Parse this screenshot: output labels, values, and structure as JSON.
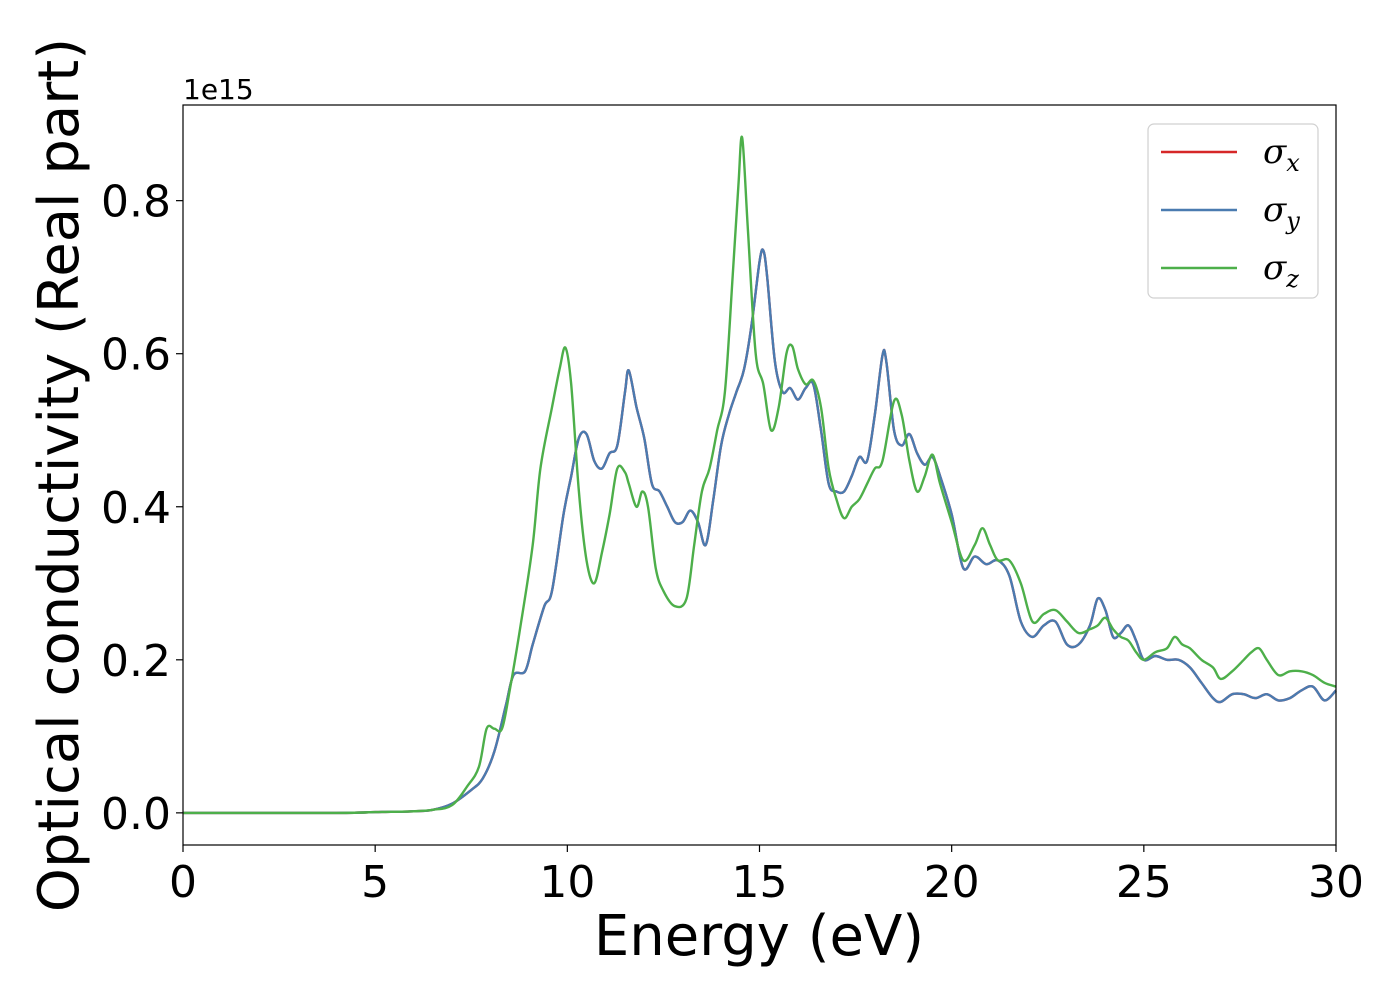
{
  "chart_data": {
    "type": "line",
    "title": "",
    "xlabel": "Energy (eV)",
    "ylabel": "Optical conductivity (Real part)",
    "y_offset_label": "1e15",
    "xlim": [
      0,
      30
    ],
    "ylim": [
      -0.042,
      0.925
    ],
    "x_ticks": [
      0,
      5,
      10,
      15,
      20,
      25,
      30
    ],
    "x_tick_labels": [
      "0",
      "5",
      "10",
      "15",
      "20",
      "25",
      "30"
    ],
    "y_ticks": [
      0.0,
      0.2,
      0.4,
      0.6,
      0.8
    ],
    "y_tick_labels": [
      "0.0",
      "0.2",
      "0.4",
      "0.6",
      "0.8"
    ],
    "grid": false,
    "legend_position": "top-right",
    "series": [
      {
        "name": "σx",
        "symbol": "σ",
        "subscript": "x",
        "color": "#d62728",
        "x": [
          0,
          4,
          5,
          6,
          6.5,
          7.0,
          7.5,
          7.8,
          8.1,
          8.4,
          8.6,
          8.9,
          9.1,
          9.4,
          9.6,
          9.9,
          10.1,
          10.3,
          10.5,
          10.7,
          10.9,
          11.1,
          11.3,
          11.5,
          11.6,
          11.8,
          12.0,
          12.2,
          12.4,
          12.6,
          12.8,
          13.0,
          13.2,
          13.4,
          13.6,
          13.8,
          14.0,
          14.2,
          14.4,
          14.6,
          14.8,
          15.0,
          15.1,
          15.2,
          15.4,
          15.6,
          15.8,
          16.0,
          16.2,
          16.4,
          16.6,
          16.8,
          17.0,
          17.2,
          17.4,
          17.6,
          17.8,
          18.0,
          18.2,
          18.3,
          18.5,
          18.7,
          18.9,
          19.1,
          19.3,
          19.5,
          19.7,
          20.0,
          20.3,
          20.6,
          20.9,
          21.2,
          21.5,
          21.8,
          22.1,
          22.4,
          22.7,
          23.0,
          23.3,
          23.6,
          23.8,
          24.0,
          24.2,
          24.4,
          24.6,
          24.8,
          25.0,
          25.3,
          25.6,
          25.9,
          26.2,
          26.5,
          26.8,
          27.0,
          27.3,
          27.6,
          27.9,
          28.2,
          28.5,
          28.8,
          29.1,
          29.4,
          29.7,
          30
        ],
        "values": [
          0,
          0,
          0.001,
          0.002,
          0.004,
          0.012,
          0.03,
          0.045,
          0.08,
          0.14,
          0.18,
          0.185,
          0.22,
          0.27,
          0.29,
          0.39,
          0.44,
          0.49,
          0.495,
          0.46,
          0.45,
          0.47,
          0.48,
          0.55,
          0.578,
          0.53,
          0.49,
          0.43,
          0.42,
          0.4,
          0.38,
          0.38,
          0.395,
          0.38,
          0.35,
          0.41,
          0.48,
          0.52,
          0.55,
          0.58,
          0.64,
          0.72,
          0.735,
          0.7,
          0.59,
          0.55,
          0.555,
          0.54,
          0.555,
          0.56,
          0.5,
          0.43,
          0.42,
          0.42,
          0.44,
          0.465,
          0.46,
          0.52,
          0.598,
          0.59,
          0.5,
          0.48,
          0.495,
          0.47,
          0.455,
          0.465,
          0.44,
          0.39,
          0.32,
          0.335,
          0.325,
          0.33,
          0.31,
          0.25,
          0.23,
          0.245,
          0.25,
          0.22,
          0.22,
          0.245,
          0.28,
          0.265,
          0.23,
          0.235,
          0.245,
          0.225,
          0.2,
          0.205,
          0.2,
          0.2,
          0.19,
          0.17,
          0.15,
          0.145,
          0.155,
          0.155,
          0.15,
          0.155,
          0.147,
          0.15,
          0.16,
          0.165,
          0.147,
          0.16
        ]
      },
      {
        "name": "σy",
        "symbol": "σ",
        "subscript": "y",
        "color": "#4a7bb0",
        "x": [
          0,
          4,
          5,
          6,
          6.5,
          7.0,
          7.5,
          7.8,
          8.1,
          8.4,
          8.6,
          8.9,
          9.1,
          9.4,
          9.6,
          9.9,
          10.1,
          10.3,
          10.5,
          10.7,
          10.9,
          11.1,
          11.3,
          11.5,
          11.6,
          11.8,
          12.0,
          12.2,
          12.4,
          12.6,
          12.8,
          13.0,
          13.2,
          13.4,
          13.6,
          13.8,
          14.0,
          14.2,
          14.4,
          14.6,
          14.8,
          15.0,
          15.1,
          15.2,
          15.4,
          15.6,
          15.8,
          16.0,
          16.2,
          16.4,
          16.6,
          16.8,
          17.0,
          17.2,
          17.4,
          17.6,
          17.8,
          18.0,
          18.2,
          18.3,
          18.5,
          18.7,
          18.9,
          19.1,
          19.3,
          19.5,
          19.7,
          20.0,
          20.3,
          20.6,
          20.9,
          21.2,
          21.5,
          21.8,
          22.1,
          22.4,
          22.7,
          23.0,
          23.3,
          23.6,
          23.8,
          24.0,
          24.2,
          24.4,
          24.6,
          24.8,
          25.0,
          25.3,
          25.6,
          25.9,
          26.2,
          26.5,
          26.8,
          27.0,
          27.3,
          27.6,
          27.9,
          28.2,
          28.5,
          28.8,
          29.1,
          29.4,
          29.7,
          30
        ],
        "values": [
          0,
          0,
          0.001,
          0.002,
          0.004,
          0.012,
          0.03,
          0.045,
          0.08,
          0.14,
          0.18,
          0.185,
          0.22,
          0.27,
          0.29,
          0.39,
          0.44,
          0.49,
          0.495,
          0.46,
          0.45,
          0.47,
          0.48,
          0.55,
          0.578,
          0.53,
          0.49,
          0.43,
          0.42,
          0.4,
          0.38,
          0.38,
          0.395,
          0.38,
          0.35,
          0.41,
          0.48,
          0.52,
          0.55,
          0.58,
          0.64,
          0.72,
          0.735,
          0.7,
          0.59,
          0.55,
          0.555,
          0.54,
          0.555,
          0.56,
          0.5,
          0.43,
          0.42,
          0.42,
          0.44,
          0.465,
          0.46,
          0.52,
          0.598,
          0.59,
          0.5,
          0.48,
          0.495,
          0.47,
          0.455,
          0.465,
          0.44,
          0.39,
          0.32,
          0.335,
          0.325,
          0.33,
          0.31,
          0.25,
          0.23,
          0.245,
          0.25,
          0.22,
          0.22,
          0.245,
          0.28,
          0.265,
          0.23,
          0.235,
          0.245,
          0.225,
          0.2,
          0.205,
          0.2,
          0.2,
          0.19,
          0.17,
          0.15,
          0.145,
          0.155,
          0.155,
          0.15,
          0.155,
          0.147,
          0.15,
          0.16,
          0.165,
          0.147,
          0.16
        ]
      },
      {
        "name": "σz",
        "symbol": "σ",
        "subscript": "z",
        "color": "#4daf4a",
        "x": [
          0,
          4,
          5,
          6,
          6.5,
          7.0,
          7.4,
          7.7,
          7.9,
          8.1,
          8.3,
          8.5,
          8.8,
          9.1,
          9.3,
          9.6,
          9.8,
          9.95,
          10.1,
          10.3,
          10.5,
          10.7,
          10.9,
          11.1,
          11.3,
          11.5,
          11.6,
          11.8,
          11.95,
          12.1,
          12.3,
          12.5,
          12.8,
          13.1,
          13.3,
          13.5,
          13.7,
          13.9,
          14.1,
          14.3,
          14.45,
          14.55,
          14.7,
          14.9,
          15.1,
          15.3,
          15.5,
          15.7,
          15.85,
          16.0,
          16.2,
          16.4,
          16.6,
          16.8,
          17.0,
          17.2,
          17.4,
          17.6,
          17.8,
          18.0,
          18.2,
          18.5,
          18.7,
          18.9,
          19.1,
          19.3,
          19.5,
          19.7,
          20.0,
          20.3,
          20.6,
          20.8,
          21.0,
          21.2,
          21.5,
          21.8,
          22.1,
          22.4,
          22.7,
          23.0,
          23.3,
          23.6,
          23.8,
          24.0,
          24.2,
          24.4,
          24.6,
          24.8,
          25.0,
          25.3,
          25.6,
          25.8,
          26.0,
          26.2,
          26.5,
          26.8,
          27.0,
          27.3,
          27.6,
          27.8,
          28.0,
          28.2,
          28.5,
          28.8,
          29.1,
          29.4,
          29.7,
          30
        ],
        "values": [
          0,
          0,
          0.001,
          0.002,
          0.004,
          0.01,
          0.035,
          0.06,
          0.11,
          0.11,
          0.11,
          0.16,
          0.25,
          0.35,
          0.45,
          0.53,
          0.58,
          0.608,
          0.56,
          0.42,
          0.33,
          0.3,
          0.34,
          0.39,
          0.45,
          0.445,
          0.43,
          0.4,
          0.42,
          0.4,
          0.32,
          0.29,
          0.27,
          0.28,
          0.35,
          0.42,
          0.45,
          0.5,
          0.55,
          0.7,
          0.82,
          0.882,
          0.76,
          0.6,
          0.56,
          0.5,
          0.53,
          0.6,
          0.61,
          0.58,
          0.56,
          0.565,
          0.53,
          0.45,
          0.41,
          0.385,
          0.4,
          0.41,
          0.43,
          0.45,
          0.46,
          0.538,
          0.52,
          0.46,
          0.42,
          0.44,
          0.468,
          0.43,
          0.38,
          0.33,
          0.35,
          0.372,
          0.35,
          0.33,
          0.33,
          0.3,
          0.25,
          0.26,
          0.265,
          0.25,
          0.235,
          0.24,
          0.245,
          0.255,
          0.24,
          0.23,
          0.225,
          0.21,
          0.2,
          0.21,
          0.215,
          0.23,
          0.22,
          0.215,
          0.2,
          0.19,
          0.175,
          0.185,
          0.2,
          0.21,
          0.215,
          0.2,
          0.18,
          0.185,
          0.185,
          0.18,
          0.17,
          0.165
        ]
      }
    ]
  }
}
